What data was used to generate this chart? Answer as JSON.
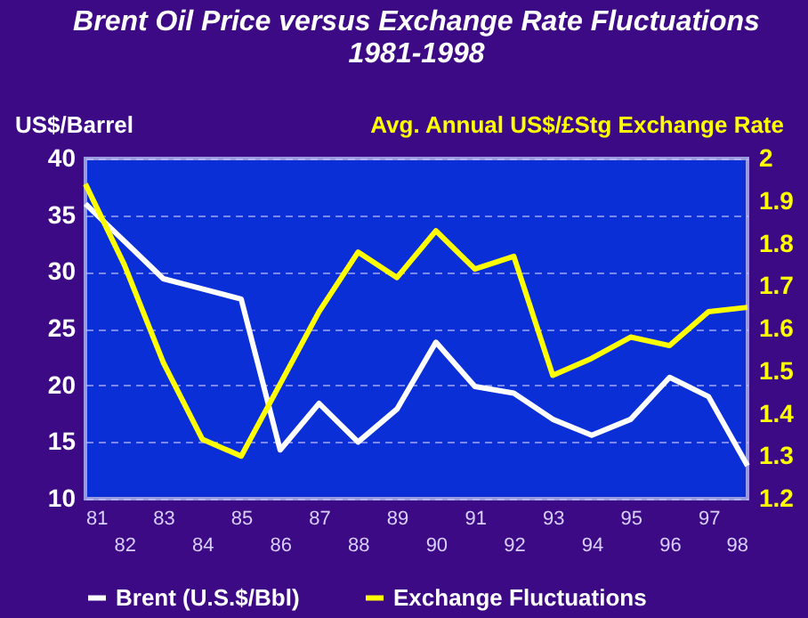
{
  "chart_data": {
    "type": "line",
    "title": [
      "Brent Oil Price versus Exchange Rate Fluctuations",
      "1981-1998"
    ],
    "ylabel": "US$/Barrel",
    "y2label": "Avg. Annual US$/£Stg Exchange Rate",
    "categories": [
      "81",
      "82",
      "83",
      "84",
      "85",
      "86",
      "87",
      "88",
      "89",
      "90",
      "91",
      "92",
      "93",
      "94",
      "95",
      "96",
      "97",
      "98"
    ],
    "series": [
      {
        "name": "Brent (U.S.$/Bbl)",
        "color": "#ffffff",
        "values": [
          36,
          32.7,
          29.4,
          28.5,
          27.6,
          14.3,
          18.4,
          15,
          17.9,
          23.8,
          19.9,
          19.3,
          17,
          15.6,
          17,
          20.7,
          19,
          12.9
        ]
      },
      {
        "name": "Exchange Fluctuations",
        "color": "#ffff00",
        "axis": "y2",
        "values": [
          1.94,
          1.75,
          1.52,
          1.34,
          1.3,
          1.47,
          1.64,
          1.78,
          1.72,
          1.83,
          1.74,
          1.77,
          1.49,
          1.53,
          1.58,
          1.56,
          1.64,
          1.65
        ]
      }
    ],
    "ylim": [
      10,
      40
    ],
    "yticks": [
      10,
      15,
      20,
      25,
      30,
      35,
      40
    ],
    "y2lim": [
      1.2,
      2
    ],
    "y2ticks": [
      1.2,
      1.3,
      1.4,
      1.5,
      1.6,
      1.7,
      1.8,
      1.9,
      2
    ],
    "grid": "y",
    "legend": "bottom",
    "line_style": "solid",
    "marker": "none"
  }
}
